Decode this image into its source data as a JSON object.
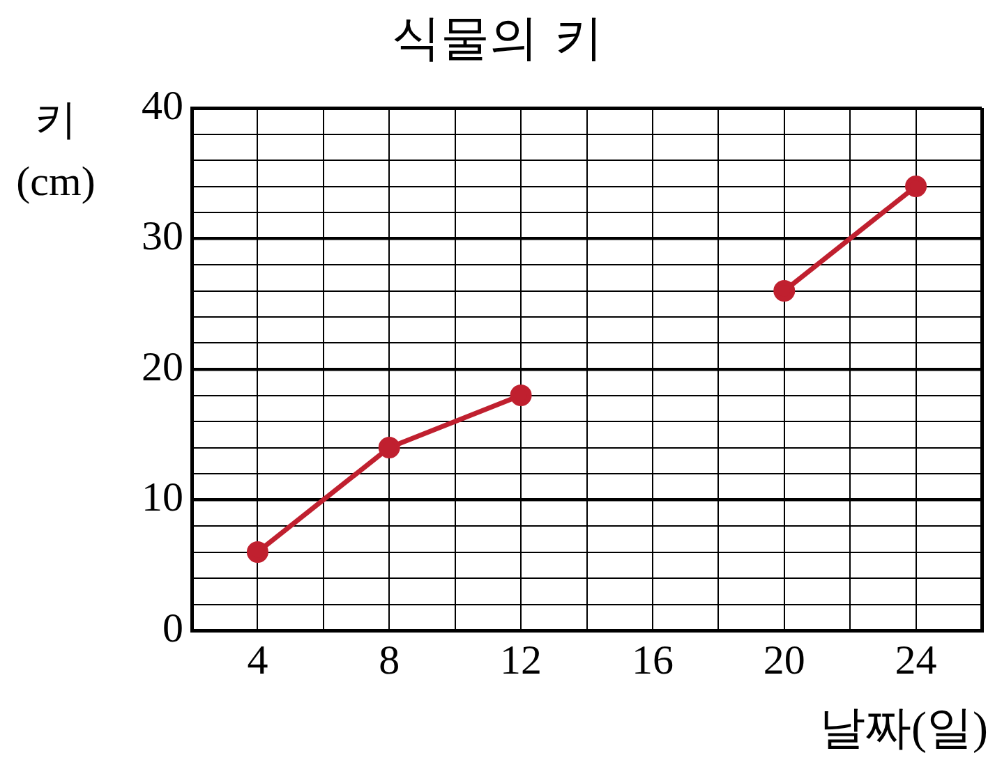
{
  "chart_data": {
    "type": "line",
    "title": "식물의 키",
    "xlabel": "날짜(일)",
    "ylabel": "키 (cm)",
    "x": [
      4,
      8,
      12,
      16,
      20,
      24
    ],
    "series": [
      {
        "color": "#c0202f",
        "values": [
          6,
          14,
          18,
          null,
          26,
          34
        ]
      }
    ],
    "xlim": [
      2,
      26
    ],
    "xticks": [
      {
        "value": 2,
        "label": null
      },
      4,
      {
        "value": 6,
        "label": null
      },
      8,
      {
        "value": 10,
        "label": null
      },
      12,
      {
        "value": 14,
        "label": null
      },
      16,
      {
        "value": 18,
        "label": null
      },
      20,
      {
        "value": 22,
        "label": null
      },
      24,
      {
        "value": 26,
        "label": null
      }
    ],
    "ylim": [
      0,
      40
    ],
    "yticks": [
      0,
      {
        "value": 2,
        "label": null
      },
      {
        "value": 4,
        "label": null
      },
      {
        "value": 6,
        "label": null
      },
      {
        "value": 8,
        "label": null
      },
      10,
      {
        "value": 12,
        "label": null
      },
      {
        "value": 14,
        "label": null
      },
      {
        "value": 16,
        "label": null
      },
      {
        "value": 18,
        "label": null
      },
      20,
      {
        "value": 22,
        "label": null
      },
      {
        "value": 24,
        "label": null
      },
      {
        "value": 26,
        "label": null
      },
      {
        "value": 28,
        "label": null
      },
      30,
      {
        "value": 32,
        "label": null
      },
      {
        "value": 34,
        "label": null
      },
      {
        "value": 36,
        "label": null
      },
      {
        "value": 38,
        "label": null
      },
      40
    ],
    "grid": true,
    "legend": false,
    "marker": "circle",
    "line_style": "solid"
  }
}
